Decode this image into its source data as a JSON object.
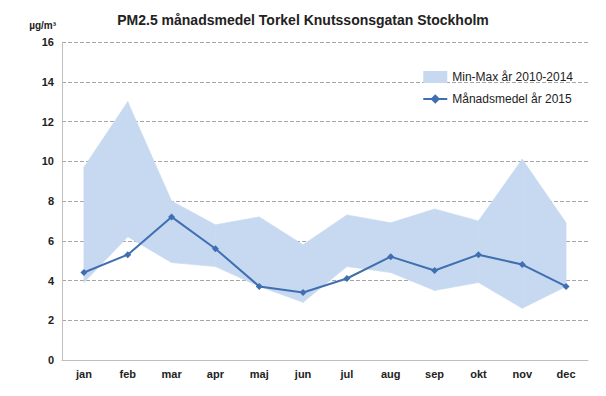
{
  "chart_data": {
    "type": "line",
    "title": "PM2.5 månadsmedel Torkel Knutssonsgatan Stockholm",
    "ylabel": "µg/m³",
    "categories": [
      "jan",
      "feb",
      "mar",
      "apr",
      "maj",
      "jun",
      "jul",
      "aug",
      "sep",
      "okt",
      "nov",
      "dec"
    ],
    "series": [
      {
        "name": "Min-Max år 2010-2014",
        "type": "band",
        "color": "#c6d9f1",
        "low": [
          3.9,
          6.2,
          4.9,
          4.7,
          3.7,
          2.9,
          4.7,
          4.4,
          3.5,
          3.9,
          2.6,
          3.7
        ],
        "high": [
          9.7,
          13.0,
          8.0,
          6.8,
          7.2,
          5.8,
          7.3,
          6.9,
          7.6,
          7.0,
          10.1,
          6.9
        ]
      },
      {
        "name": "Månadsmedel år 2015",
        "type": "line",
        "color": "#3f6fb0",
        "marker": "diamond",
        "values": [
          4.4,
          5.3,
          7.2,
          5.6,
          3.7,
          3.4,
          4.1,
          5.2,
          4.5,
          5.3,
          4.8,
          3.7
        ]
      }
    ],
    "ylim": [
      0,
      16
    ],
    "yticks": [
      0,
      2,
      4,
      6,
      8,
      10,
      12,
      14,
      16
    ],
    "grid": true,
    "legend": "upper right"
  }
}
